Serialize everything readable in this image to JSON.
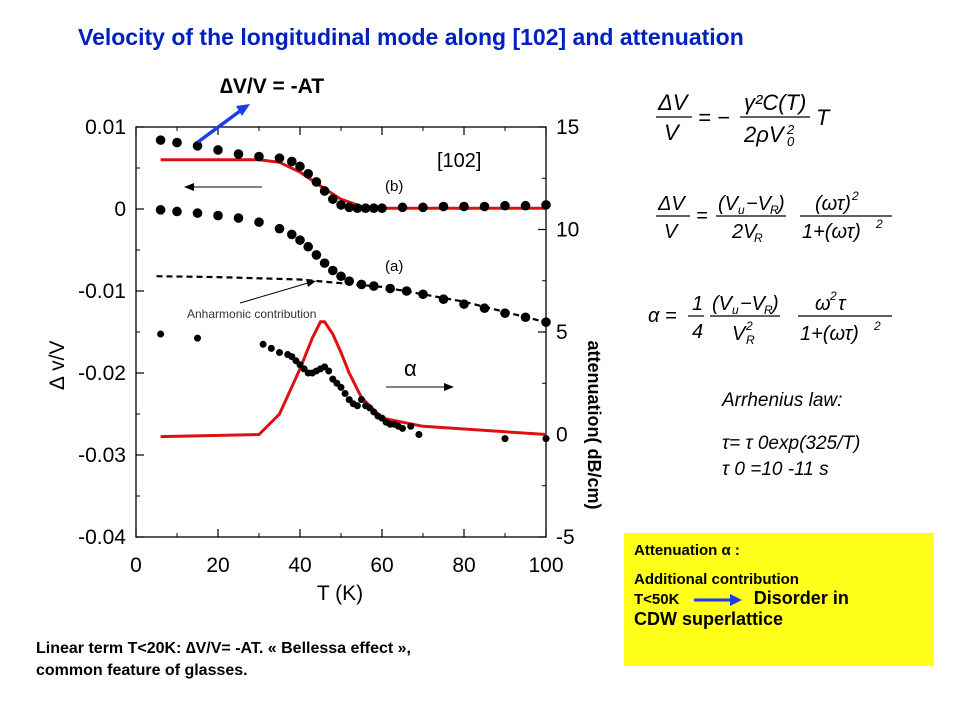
{
  "title": "Velocity of the longitudinal mode along [102]  and attenuation",
  "linear_law": "∆V/V = -AT",
  "bottom_note": {
    "line1": "Linear term T<20K: ∆V/V= -AT. « Bellessa effect »,",
    "line2": "common feature of glasses."
  },
  "arrhenius": {
    "heading": "Arrhenius law:",
    "tau": "τ= τ 0exp(325/T)",
    "tau0": "τ 0 =10 -11 s"
  },
  "attenuation_box": {
    "line1": "Attenuation α :",
    "line2": "Additional contribution",
    "line3_left": "T<50K",
    "line3_right": "Disorder in",
    "line4": "CDW superlattice",
    "bg_color": "#ffff1a"
  },
  "equations": [
    "∆V/V = − γ²C(T) / (2ρV0²) T",
    "∆V/V = (Vu − VR)/(2VR) · (ωτ)²/(1+(ωτ)²)",
    "α = 1/4 · (Vu − VR)/VR² · ω²τ/(1+(ωτ)²)"
  ],
  "chart_data": {
    "type": "scatter",
    "xlabel": "T (K)",
    "ylabel": "∆ v/V",
    "y2label": "attenuation( dB/cm)",
    "xlim": [
      0,
      100
    ],
    "ylim": [
      -0.04,
      0.01
    ],
    "y2lim": [
      -5,
      15
    ],
    "x_ticks": [
      "0",
      "20",
      "40",
      "60",
      "80",
      "100"
    ],
    "y_ticks": [
      "0.01",
      "0",
      "-0.01",
      "-0.02",
      "-0.03",
      "-0.04"
    ],
    "y2_ticks": [
      "15",
      "10",
      "5",
      "0",
      "-5"
    ],
    "annotations": {
      "direction": "[102]",
      "curve_b": "(b)",
      "curve_a": "(a)",
      "anharmonic": "Anharmonic contribution",
      "alpha": "α"
    },
    "colors": {
      "data": "#000000",
      "fit": "#dd1111",
      "arrow": "#1a3ee8"
    },
    "series": [
      {
        "axis": "left",
        "x": [
          6,
          10,
          15,
          20,
          25,
          30,
          35,
          38,
          40,
          42,
          44,
          46,
          48,
          50,
          52,
          54,
          56,
          58,
          60,
          65,
          70,
          75,
          80,
          85,
          90,
          95,
          100
        ],
        "y": [
          0.0084,
          0.0081,
          0.0077,
          0.0072,
          0.0067,
          0.0064,
          0.0062,
          0.0058,
          0.0052,
          0.0043,
          0.0033,
          0.0022,
          0.0012,
          0.0005,
          0.0002,
          0.0001,
          0.0001,
          0.0001,
          0.0001,
          0.0002,
          0.0002,
          0.0003,
          0.0003,
          0.0003,
          0.0004,
          0.0004,
          0.0005
        ]
      },
      {
        "axis": "left",
        "x": [
          6,
          10,
          15,
          20,
          25,
          30,
          35,
          38,
          40,
          42,
          44,
          46,
          48,
          50,
          52,
          55,
          58,
          62,
          66,
          70,
          75,
          80,
          85,
          90,
          95,
          100
        ],
        "y": [
          -0.0001,
          -0.0003,
          -0.0005,
          -0.0008,
          -0.0011,
          -0.0016,
          -0.0024,
          -0.0031,
          -0.0038,
          -0.0046,
          -0.0056,
          -0.0066,
          -0.0075,
          -0.0082,
          -0.0088,
          -0.0092,
          -0.0094,
          -0.0097,
          -0.01,
          -0.0104,
          -0.011,
          -0.0116,
          -0.0121,
          -0.0127,
          -0.0132,
          -0.0138
        ]
      },
      {
        "axis": "right",
        "x": [
          6,
          15,
          31,
          33,
          35,
          37,
          38,
          39,
          40,
          41,
          42,
          43,
          44,
          45,
          46,
          47,
          48,
          49,
          50,
          51,
          52,
          53,
          54,
          55,
          56,
          57,
          58,
          59,
          60,
          61,
          62,
          63,
          64,
          65,
          67,
          69,
          90,
          100
        ],
        "y": [
          4.9,
          4.7,
          4.4,
          4.2,
          4.0,
          3.9,
          3.8,
          3.6,
          3.4,
          3.2,
          3.0,
          3.0,
          3.1,
          3.2,
          3.3,
          3.1,
          2.7,
          2.5,
          2.3,
          2.0,
          1.7,
          1.5,
          1.4,
          1.7,
          1.4,
          1.3,
          1.1,
          0.9,
          0.8,
          0.6,
          0.5,
          0.5,
          0.4,
          0.3,
          0.4,
          0.0,
          -0.2,
          -0.2
        ]
      }
    ],
    "fits": [
      {
        "axis": "left",
        "x": [
          6,
          30,
          35,
          40,
          45,
          50,
          55,
          58,
          100
        ],
        "y": [
          0.006,
          0.006,
          0.0057,
          0.0045,
          0.0028,
          0.0012,
          0.0003,
          0.0001,
          0.0001
        ]
      },
      {
        "axis": "right",
        "x": [
          6,
          30,
          35,
          40,
          43,
          45,
          46,
          48,
          50,
          52,
          55,
          60,
          70,
          100
        ],
        "y": [
          -0.1,
          0.0,
          1.0,
          3.2,
          4.7,
          5.5,
          5.5,
          4.9,
          4.0,
          3.0,
          1.8,
          0.8,
          0.4,
          0.0
        ]
      }
    ],
    "anharmonic_line": {
      "axis": "left",
      "x": [
        5,
        20,
        40,
        60,
        80,
        100
      ],
      "y": [
        -0.0082,
        -0.0083,
        -0.0086,
        -0.0095,
        -0.0113,
        -0.0138
      ]
    }
  }
}
